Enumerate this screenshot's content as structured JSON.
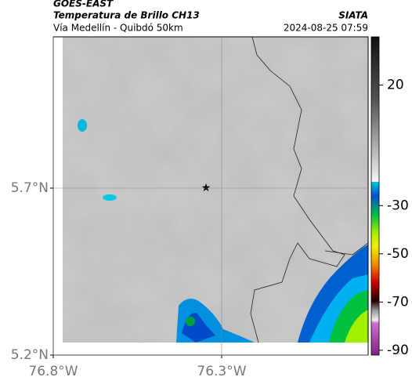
{
  "header": {
    "title": "GOES-EAST",
    "subtitle": "Temperatura de Brillo CH13",
    "source": "SIATA",
    "route": "Vía Medellín - Quibdó 50km",
    "datetime": "2024-08-25 07:59"
  },
  "map": {
    "xlim": [
      -76.8,
      -75.865
    ],
    "ylim": [
      5.2,
      6.153
    ],
    "xticks": [
      {
        "value": -76.8,
        "label": "76.8°W"
      },
      {
        "value": -76.3,
        "label": "76.3°W"
      }
    ],
    "yticks": [
      {
        "value": 5.7,
        "label": "5.7°N"
      },
      {
        "value": 5.2,
        "label": "5.2°N"
      }
    ],
    "colorbar": {
      "lim": [
        -92,
        40
      ],
      "ticks": [
        20,
        -30,
        -50,
        -70,
        -90
      ]
    }
  }
}
